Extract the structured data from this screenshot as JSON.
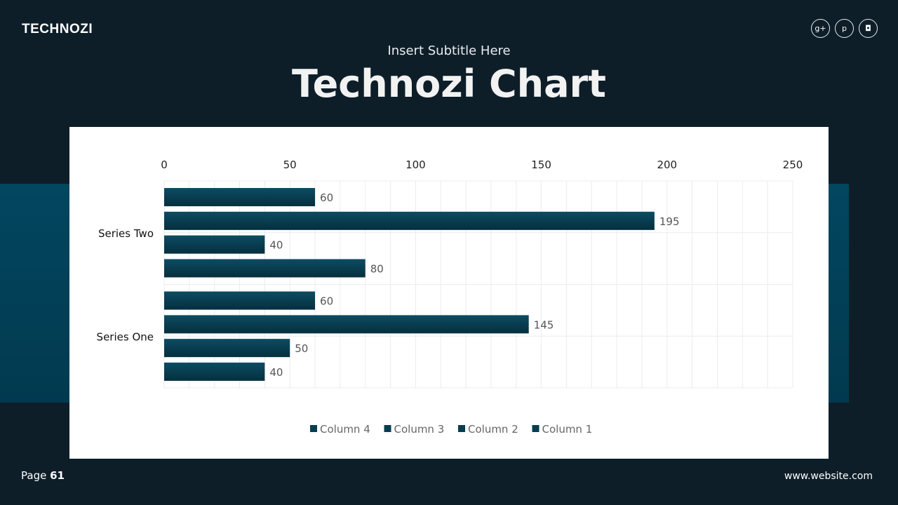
{
  "header": {
    "logo": "TECHNOZI",
    "subtitle": "Insert Subtitle Here",
    "title": "Technozi Chart"
  },
  "social": [
    {
      "icon": "google-plus-icon",
      "glyph": "g+"
    },
    {
      "icon": "pinterest-icon",
      "glyph": "p"
    },
    {
      "icon": "instagram-icon",
      "glyph": "◘"
    }
  ],
  "footer": {
    "page_label": "Page",
    "page_number": "61",
    "website": "www.website.com"
  },
  "colors": {
    "background": "#0e1e29",
    "band": "#034660",
    "bar": "#0a4a60"
  },
  "chart_data": {
    "type": "bar",
    "orientation": "horizontal",
    "categories": [
      "Series One",
      "Series Two"
    ],
    "series": [
      {
        "name": "Column 1",
        "values": [
          40,
          80
        ]
      },
      {
        "name": "Column 2",
        "values": [
          50,
          40
        ]
      },
      {
        "name": "Column 3",
        "values": [
          145,
          195
        ]
      },
      {
        "name": "Column 4",
        "values": [
          60,
          60
        ]
      }
    ],
    "xlim": [
      0,
      250
    ],
    "xticks": [
      0,
      50,
      100,
      150,
      200,
      250
    ],
    "grid": true,
    "legend": "bottom",
    "legend_order": [
      "Column 4",
      "Column 3",
      "Column 2",
      "Column 1"
    ],
    "data_labels": true
  }
}
